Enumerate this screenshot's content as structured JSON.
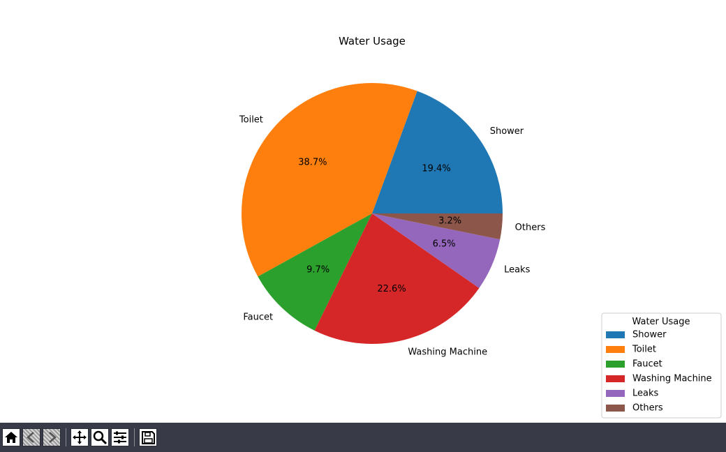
{
  "chart_data": {
    "type": "pie",
    "title": "Water Usage",
    "categories": [
      "Shower",
      "Toilet",
      "Faucet",
      "Washing Machine",
      "Leaks",
      "Others"
    ],
    "values": [
      19.4,
      38.7,
      9.7,
      22.6,
      6.5,
      3.2
    ],
    "pct_labels": [
      "19.4%",
      "38.7%",
      "9.7%",
      "22.6%",
      "6.5%",
      "3.2%"
    ],
    "colors": [
      "#1f77b4",
      "#ff7f0e",
      "#2ca02c",
      "#d62728",
      "#9467bd",
      "#8c564b"
    ],
    "start_angle_deg": 0,
    "direction": "counterclockwise",
    "legend": {
      "title": "Water Usage",
      "placement": "lower-right",
      "entries": [
        "Shower",
        "Toilet",
        "Faucet",
        "Washing Machine",
        "Leaks",
        "Others"
      ]
    }
  },
  "toolbar": {
    "buttons": [
      {
        "name": "home-button",
        "icon": "home-icon",
        "enabled": true
      },
      {
        "name": "back-button",
        "icon": "arrow-left-icon",
        "enabled": false
      },
      {
        "name": "forward-button",
        "icon": "arrow-right-icon",
        "enabled": false
      },
      {
        "name": "pan-button",
        "icon": "move-icon",
        "enabled": true
      },
      {
        "name": "zoom-button",
        "icon": "magnifier-icon",
        "enabled": true
      },
      {
        "name": "configure-button",
        "icon": "sliders-icon",
        "enabled": true
      },
      {
        "name": "save-button",
        "icon": "floppy-disk-icon",
        "enabled": true
      }
    ]
  }
}
